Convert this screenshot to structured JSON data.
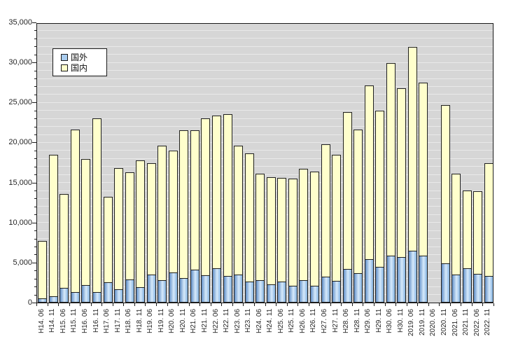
{
  "chart_data": {
    "type": "bar",
    "stacked": true,
    "title": "",
    "categories": [
      "H14. 06",
      "H14. 11",
      "H15. 06",
      "H15. 11",
      "H16. 06",
      "H16. 11",
      "H17. 06",
      "H17. 11",
      "H18. 06",
      "H18. 11",
      "H19. 06",
      "H19. 11",
      "H20. 06",
      "H20. 11",
      "H21. 06",
      "H21. 11",
      "H22. 06",
      "H22. 11",
      "H23. 06",
      "H23. 11",
      "H24. 06",
      "H24. 11",
      "H25. 06",
      "H25. 11",
      "H26. 06",
      "H26. 11",
      "H27. 06",
      "H27. 11",
      "H28. 06",
      "H28. 11",
      "H29. 06",
      "H29. 11",
      "H30. 06",
      "H30. 11",
      "2019. 06",
      "2019. 11",
      "2020. 06",
      "2020. 11",
      "2021. 06",
      "2021. 11",
      "2022. 06",
      "2022. 11"
    ],
    "series": [
      {
        "name": "国外",
        "values": [
          500,
          800,
          1800,
          1300,
          2200,
          1300,
          2500,
          1700,
          2900,
          1900,
          3500,
          2800,
          3800,
          3100,
          4100,
          3400,
          4300,
          3300,
          3500,
          2600,
          2800,
          2300,
          2600,
          2100,
          2800,
          2100,
          3200,
          2700,
          4200,
          3700,
          5400,
          4500,
          5900,
          5700,
          6500,
          5900,
          0,
          4900,
          3500,
          4300,
          3600,
          3300
        ]
      },
      {
        "name": "国内",
        "values": [
          7200,
          17700,
          11800,
          20300,
          15700,
          21700,
          10700,
          15100,
          13400,
          15900,
          13900,
          16800,
          15200,
          18400,
          17400,
          19600,
          19100,
          20200,
          16100,
          16000,
          13300,
          13400,
          13000,
          13400,
          13900,
          14300,
          16600,
          15800,
          19600,
          17900,
          21700,
          19500,
          24000,
          21100,
          25400,
          21600,
          0,
          19800,
          12600,
          9700,
          10300,
          14100
        ]
      }
    ],
    "totals": [
      7700,
      18500,
      13600,
      21600,
      17900,
      23000,
      13200,
      16800,
      16300,
      17800,
      17400,
      19600,
      19000,
      21500,
      21500,
      23000,
      23400,
      23500,
      19600,
      18600,
      16100,
      15700,
      15600,
      15500,
      16700,
      16400,
      19800,
      18500,
      23800,
      21600,
      27100,
      24000,
      29900,
      26800,
      31900,
      27500,
      0,
      24700,
      16100,
      14000,
      13900,
      17400
    ],
    "xlabel": "",
    "ylabel": "",
    "ylim": [
      0,
      35000
    ],
    "y_major_tick": 5000,
    "y_minor_tick": 1000,
    "y_tick_labels": [
      "0",
      "5,000",
      "10,000",
      "15,000",
      "20,000",
      "25,000",
      "30,000",
      "35,000"
    ],
    "grid": true,
    "legend_position": "inside-top-left"
  },
  "legend": {
    "items": [
      {
        "label": "国外",
        "color": "#a9ccee"
      },
      {
        "label": "国内",
        "color": "#ffffcc"
      }
    ]
  },
  "colors": {
    "plot_background": "#d6d6d6",
    "gridline": "#e9e9e9",
    "domestic_fill": "#ffffcc",
    "overseas_fill_left": "#6290c8",
    "overseas_fill_highlight": "#d7eafb",
    "overseas_fill_right": "#86b4e2",
    "segment_border": "#1f1f1f",
    "axis": "#1a1a1a",
    "label_text": "#262626"
  }
}
